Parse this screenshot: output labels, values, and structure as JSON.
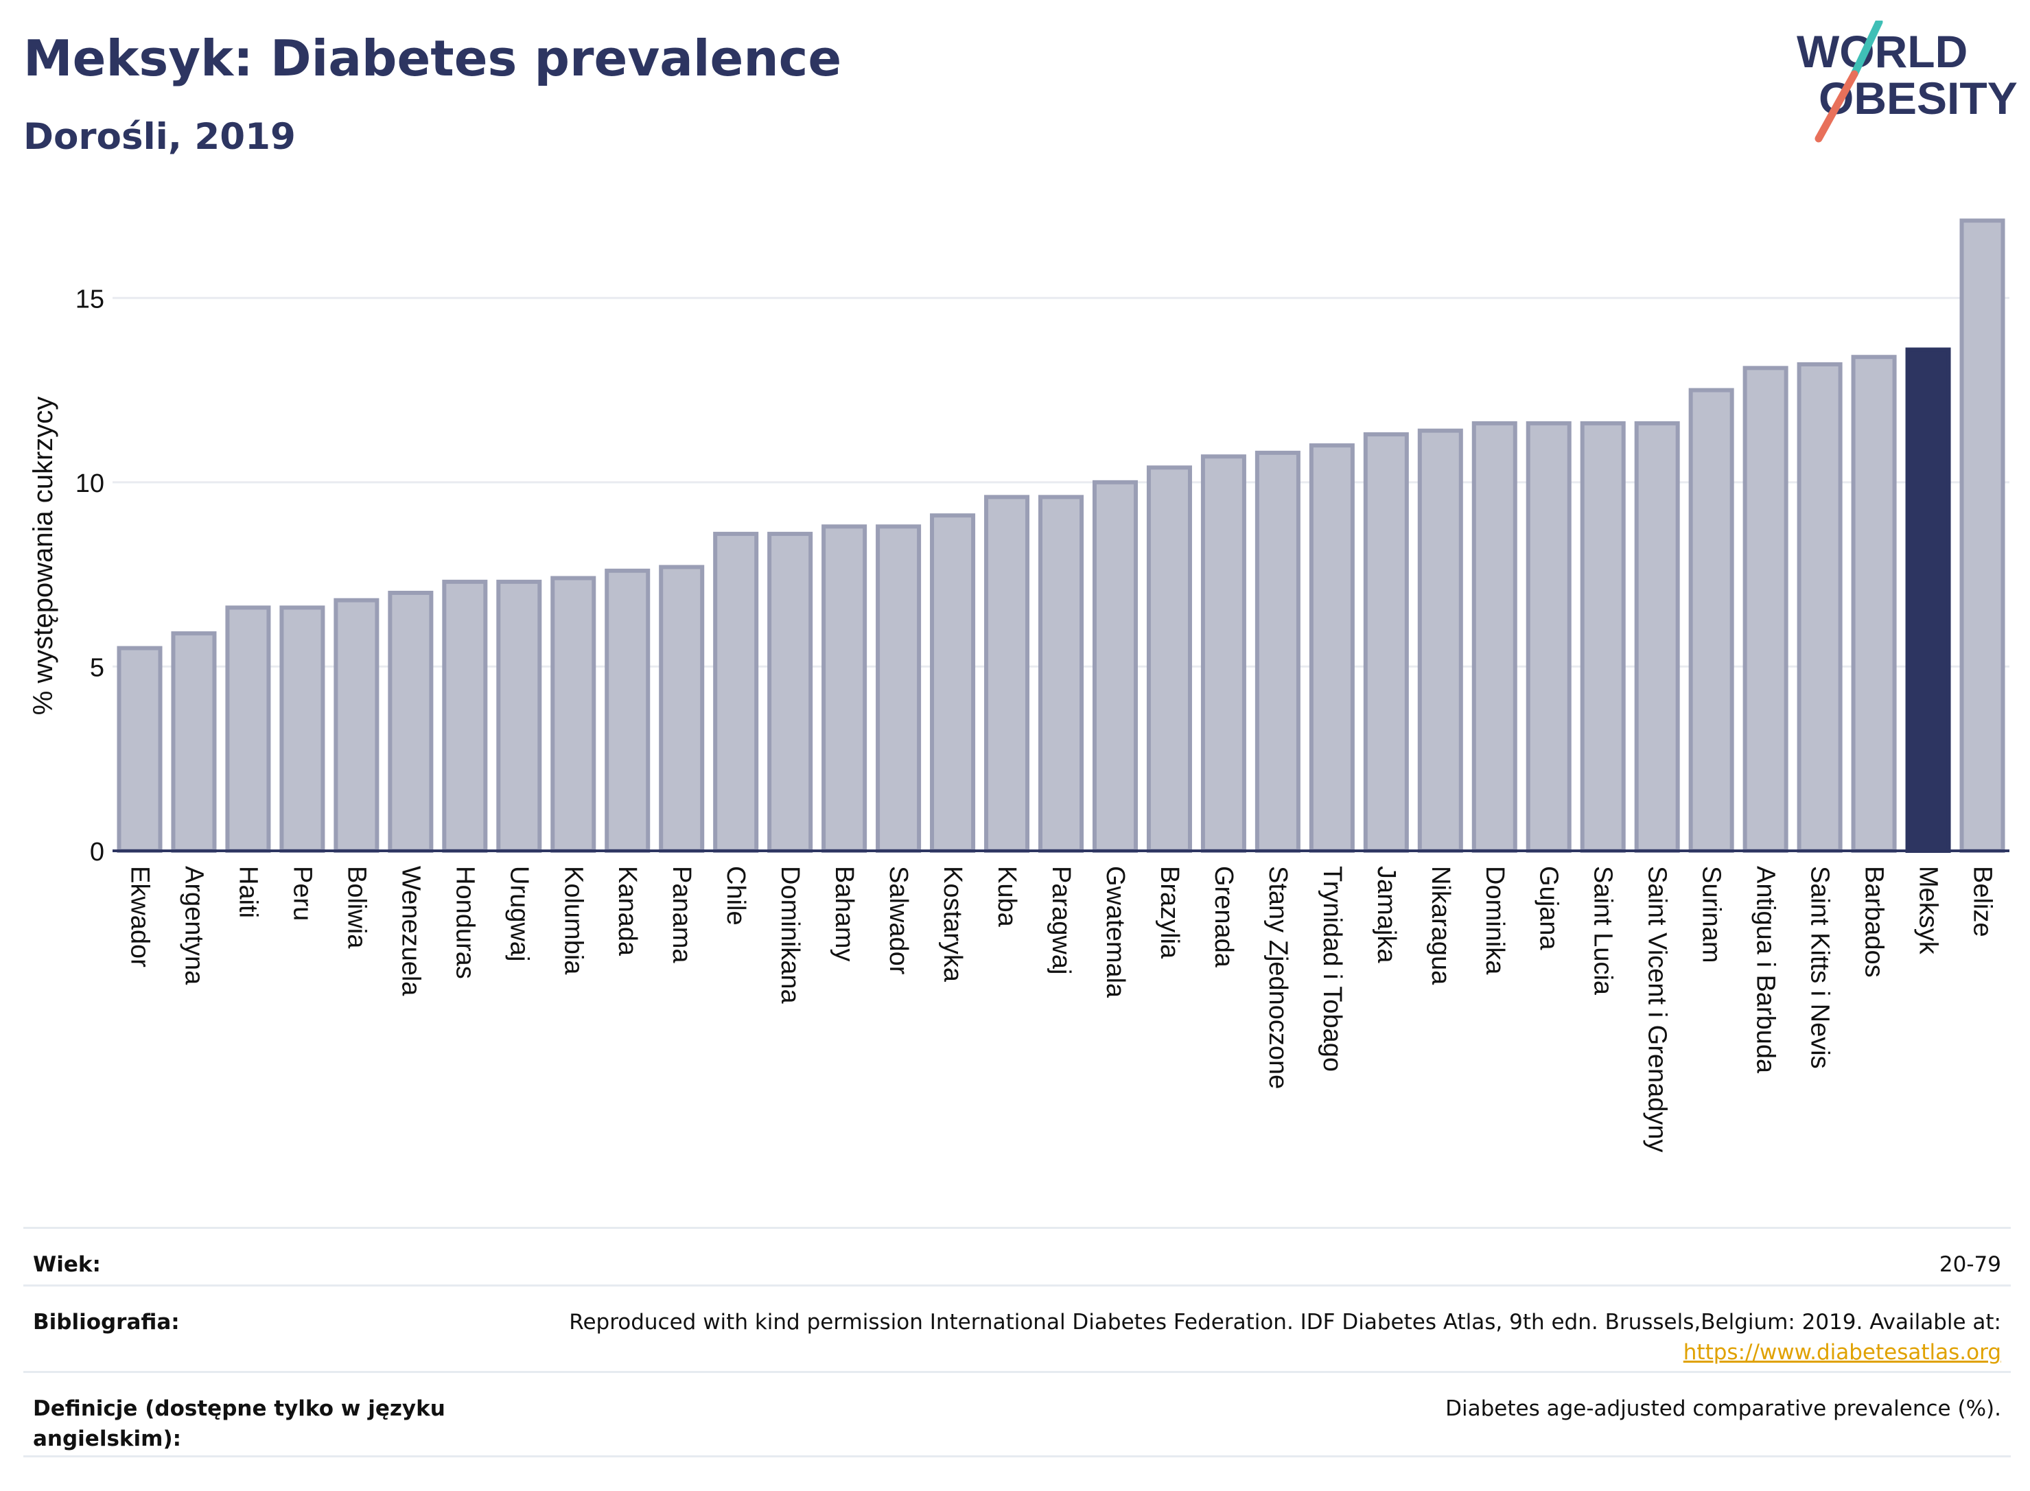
{
  "header": {
    "title": "Meksyk: Diabetes prevalence",
    "subtitle": "Dorośli, 2019"
  },
  "logo": {
    "line1": "WORLD",
    "line2": "OBESITY",
    "slash_color_top": "#3fbfb6",
    "slash_color_bottom": "#e8705a"
  },
  "colors": {
    "bar_default": "#bcbfcd",
    "bar_border": "#9a9eb5",
    "bar_highlight": "#2d3561",
    "title": "#2d3561",
    "grid": "#e9ebf0"
  },
  "chart_data": {
    "type": "bar",
    "ylabel": "% występowania cukrzycy",
    "ylim": [
      0,
      17.5
    ],
    "yticks": [
      "0",
      "5",
      "10",
      "15"
    ],
    "grid": true,
    "highlight": "Meksyk",
    "categories": [
      "Ekwador",
      "Argentyna",
      "Haiti",
      "Peru",
      "Boliwia",
      "Wenezuela",
      "Honduras",
      "Urugwaj",
      "Kolumbia",
      "Kanada",
      "Panama",
      "Chile",
      "Dominikana",
      "Bahamy",
      "Salwador",
      "Kostaryka",
      "Kuba",
      "Paragwaj",
      "Gwatemala",
      "Brazylia",
      "Grenada",
      "Stany Zjednoczone",
      "Trynidad i Tobago",
      "Jamajka",
      "Nikaragua",
      "Dominika",
      "Gujana",
      "Saint Lucia",
      "Saint Vicent i Grenadyny",
      "Surinam",
      "Antigua i Barbuda",
      "Saint Kitts i Nevis",
      "Barbados",
      "Meksyk",
      "Belize"
    ],
    "values": [
      5.5,
      5.9,
      6.6,
      6.6,
      6.8,
      7.0,
      7.3,
      7.3,
      7.4,
      7.6,
      7.7,
      8.6,
      8.6,
      8.8,
      8.8,
      9.1,
      9.6,
      9.6,
      10.0,
      10.4,
      10.7,
      10.8,
      11.0,
      11.3,
      11.4,
      11.6,
      11.6,
      11.6,
      11.6,
      12.5,
      13.1,
      13.2,
      13.4,
      13.6,
      17.1
    ]
  },
  "footer": {
    "rows": [
      {
        "label": "Wiek:",
        "value": "20-79"
      },
      {
        "label": "Bibliografia:",
        "value": "Reproduced with kind permission International Diabetes Federation. IDF Diabetes Atlas, 9th edn. Brussels,Belgium: 2019. Available at:",
        "link": "https://www.diabetesatlas.org"
      },
      {
        "label": "Definicje (dostępne tylko w języku angielskim):",
        "value": "Diabetes age-adjusted comparative prevalence (%)."
      }
    ]
  }
}
